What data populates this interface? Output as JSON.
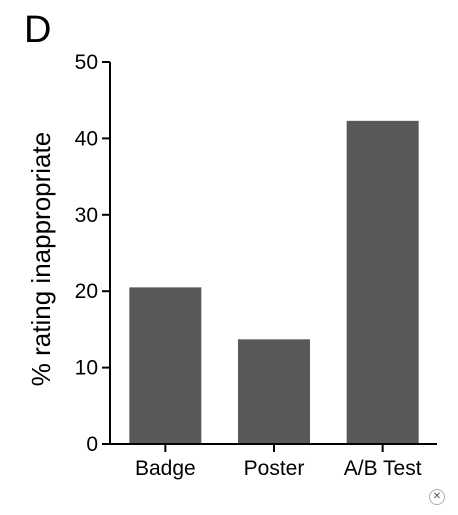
{
  "panel_label": "D",
  "close_icon": "close-icon",
  "chart_data": {
    "type": "bar",
    "categories": [
      "Badge",
      "Poster",
      "A/B Test"
    ],
    "values": [
      20.5,
      13.7,
      42.3
    ],
    "ylabel": "% rating inappropriate",
    "xlabel": "",
    "ylim": [
      0,
      50
    ],
    "yticks": [
      0,
      10,
      20,
      30,
      40,
      50
    ],
    "bar_color": "#595959",
    "grid": false,
    "legend": "none"
  }
}
